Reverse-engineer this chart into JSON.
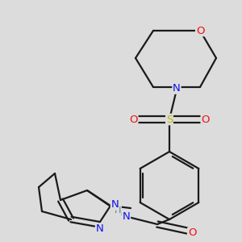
{
  "background_color": "#dcdcdc",
  "bond_color": "#1a1a1a",
  "line_width": 1.6,
  "atom_colors": {
    "N": "#1010ee",
    "O": "#ee1010",
    "S": "#bbbb00",
    "H": "#4a8080",
    "C": "#1a1a1a"
  },
  "font_size_atom": 9.5,
  "font_size_small": 8.0,
  "font_size_me": 8.5
}
